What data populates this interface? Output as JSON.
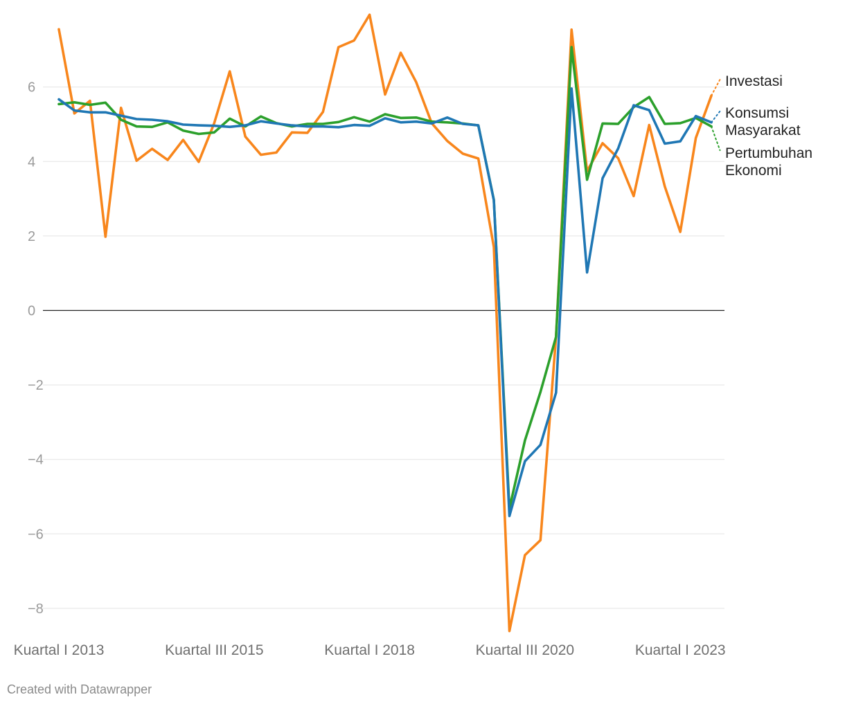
{
  "chart_data": {
    "type": "line",
    "title": "",
    "xlabel": "",
    "ylabel": "",
    "ylim": [
      -8.6,
      8.0
    ],
    "yticks": [
      6,
      4,
      2,
      0,
      -2,
      -4,
      -6,
      -8
    ],
    "ytick_labels": [
      "6",
      "4",
      "2",
      "0",
      "−2",
      "−4",
      "−6",
      "−8"
    ],
    "grid": true,
    "legend": "direct labels at right end of lines",
    "x": [
      "Q1 2013",
      "Q2 2013",
      "Q3 2013",
      "Q4 2013",
      "Q1 2014",
      "Q2 2014",
      "Q3 2014",
      "Q4 2014",
      "Q1 2015",
      "Q2 2015",
      "Q3 2015",
      "Q4 2015",
      "Q1 2016",
      "Q2 2016",
      "Q3 2016",
      "Q4 2016",
      "Q1 2017",
      "Q2 2017",
      "Q3 2017",
      "Q4 2017",
      "Q1 2018",
      "Q2 2018",
      "Q3 2018",
      "Q4 2018",
      "Q1 2019",
      "Q2 2019",
      "Q3 2019",
      "Q4 2019",
      "Q1 2020",
      "Q2 2020",
      "Q3 2020",
      "Q4 2020",
      "Q1 2021",
      "Q2 2021",
      "Q3 2021",
      "Q4 2021",
      "Q1 2022",
      "Q2 2022",
      "Q3 2022",
      "Q4 2022",
      "Q1 2023",
      "Q2 2023",
      "Q3 2023",
      "Q4 2023"
    ],
    "xtick_labels": [
      {
        "index": 0,
        "label": "Kuartal I 2013"
      },
      {
        "index": 10,
        "label": "Kuartal III 2015"
      },
      {
        "index": 20,
        "label": "Kuartal I 2018"
      },
      {
        "index": 30,
        "label": "Kuartal III 2020"
      },
      {
        "index": 40,
        "label": "Kuartal I 2023"
      }
    ],
    "series": [
      {
        "name": "Investasi",
        "label_lines": [
          "Investasi"
        ],
        "color": "#f8861c",
        "values": [
          7.55,
          5.29,
          5.63,
          1.98,
          5.44,
          4.02,
          4.34,
          4.04,
          4.58,
          3.99,
          5.03,
          6.42,
          4.67,
          4.18,
          4.24,
          4.78,
          4.77,
          5.33,
          7.07,
          7.25,
          7.94,
          5.8,
          6.92,
          6.13,
          5.03,
          4.55,
          4.21,
          4.08,
          1.7,
          -8.61,
          -6.57,
          -6.17,
          -0.7,
          7.54,
          3.74,
          4.49,
          4.09,
          3.07,
          4.98,
          3.33,
          2.11,
          4.63,
          5.77,
          null
        ],
        "trail_end": 6.2
      },
      {
        "name": "Konsumsi Masyarakat",
        "label_lines": [
          "Konsumsi",
          "Masyarakat"
        ],
        "color": "#1f77b4",
        "values": [
          5.67,
          5.37,
          5.32,
          5.32,
          5.23,
          5.14,
          5.12,
          5.08,
          4.99,
          4.97,
          4.96,
          4.93,
          4.97,
          5.08,
          5.02,
          4.97,
          4.94,
          4.94,
          4.92,
          4.98,
          4.96,
          5.16,
          5.05,
          5.07,
          5.02,
          5.18,
          5.01,
          4.97,
          2.96,
          -5.52,
          -4.05,
          -3.61,
          -2.21,
          5.96,
          1.02,
          3.55,
          4.35,
          5.51,
          5.38,
          4.48,
          4.54,
          5.22,
          5.05,
          null
        ],
        "trail_end": 5.35
      },
      {
        "name": "Pertumbuhan Ekonomi",
        "label_lines": [
          "Pertumbuhan",
          "Ekonomi"
        ],
        "color": "#2ca02c",
        "values": [
          5.54,
          5.59,
          5.52,
          5.58,
          5.12,
          4.94,
          4.93,
          5.05,
          4.83,
          4.74,
          4.78,
          5.15,
          4.94,
          5.21,
          5.03,
          4.94,
          5.01,
          5.01,
          5.06,
          5.19,
          5.07,
          5.27,
          5.17,
          5.18,
          5.07,
          5.05,
          5.02,
          4.97,
          2.97,
          -5.32,
          -3.49,
          -2.19,
          -0.71,
          7.07,
          3.51,
          5.02,
          5.01,
          5.46,
          5.73,
          5.01,
          5.03,
          5.17,
          4.94,
          null
        ],
        "trail_end": 4.3
      }
    ]
  },
  "footer": {
    "credit": "Created with Datawrapper"
  }
}
